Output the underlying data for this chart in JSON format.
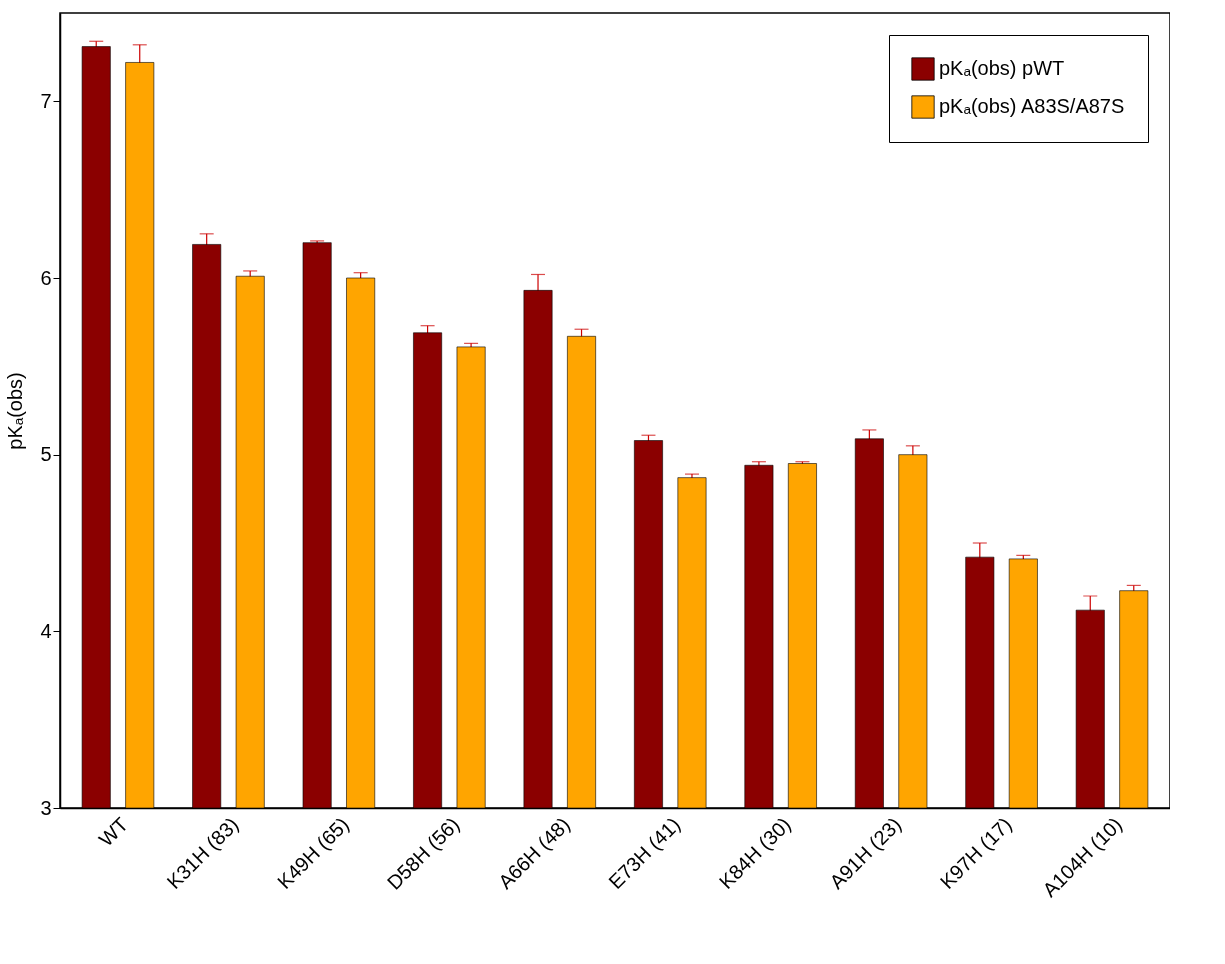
{
  "chart_data": {
    "type": "bar",
    "ylabel": "pKₐ(obs)",
    "categories": [
      "WT",
      "K31H (83)",
      "K49H (65)",
      "D58H (56)",
      "A66H (48)",
      "E73H (41)",
      "K84H (30)",
      "A91H (23)",
      "K97H (17)",
      "A104H (10)"
    ],
    "series": [
      {
        "name": "pKₐ(obs) pWT",
        "color": "#8b0000",
        "values": [
          7.31,
          6.19,
          6.2,
          5.69,
          5.93,
          5.08,
          4.94,
          5.09,
          4.42,
          4.12
        ],
        "errors": [
          0.03,
          0.06,
          0.01,
          0.04,
          0.09,
          0.03,
          0.02,
          0.05,
          0.08,
          0.08
        ]
      },
      {
        "name": "pKₐ(obs) A83S/A87S",
        "color": "#ffa500",
        "values": [
          7.22,
          6.01,
          6.0,
          5.61,
          5.67,
          4.87,
          4.95,
          5.0,
          4.41,
          4.23
        ],
        "errors": [
          0.1,
          0.03,
          0.03,
          0.02,
          0.04,
          0.02,
          0.01,
          0.05,
          0.02,
          0.03
        ]
      }
    ],
    "ylim": [
      3,
      7.5
    ],
    "yticks": [
      3,
      4,
      5,
      6,
      7
    ],
    "grid": false,
    "legend": "top right"
  }
}
